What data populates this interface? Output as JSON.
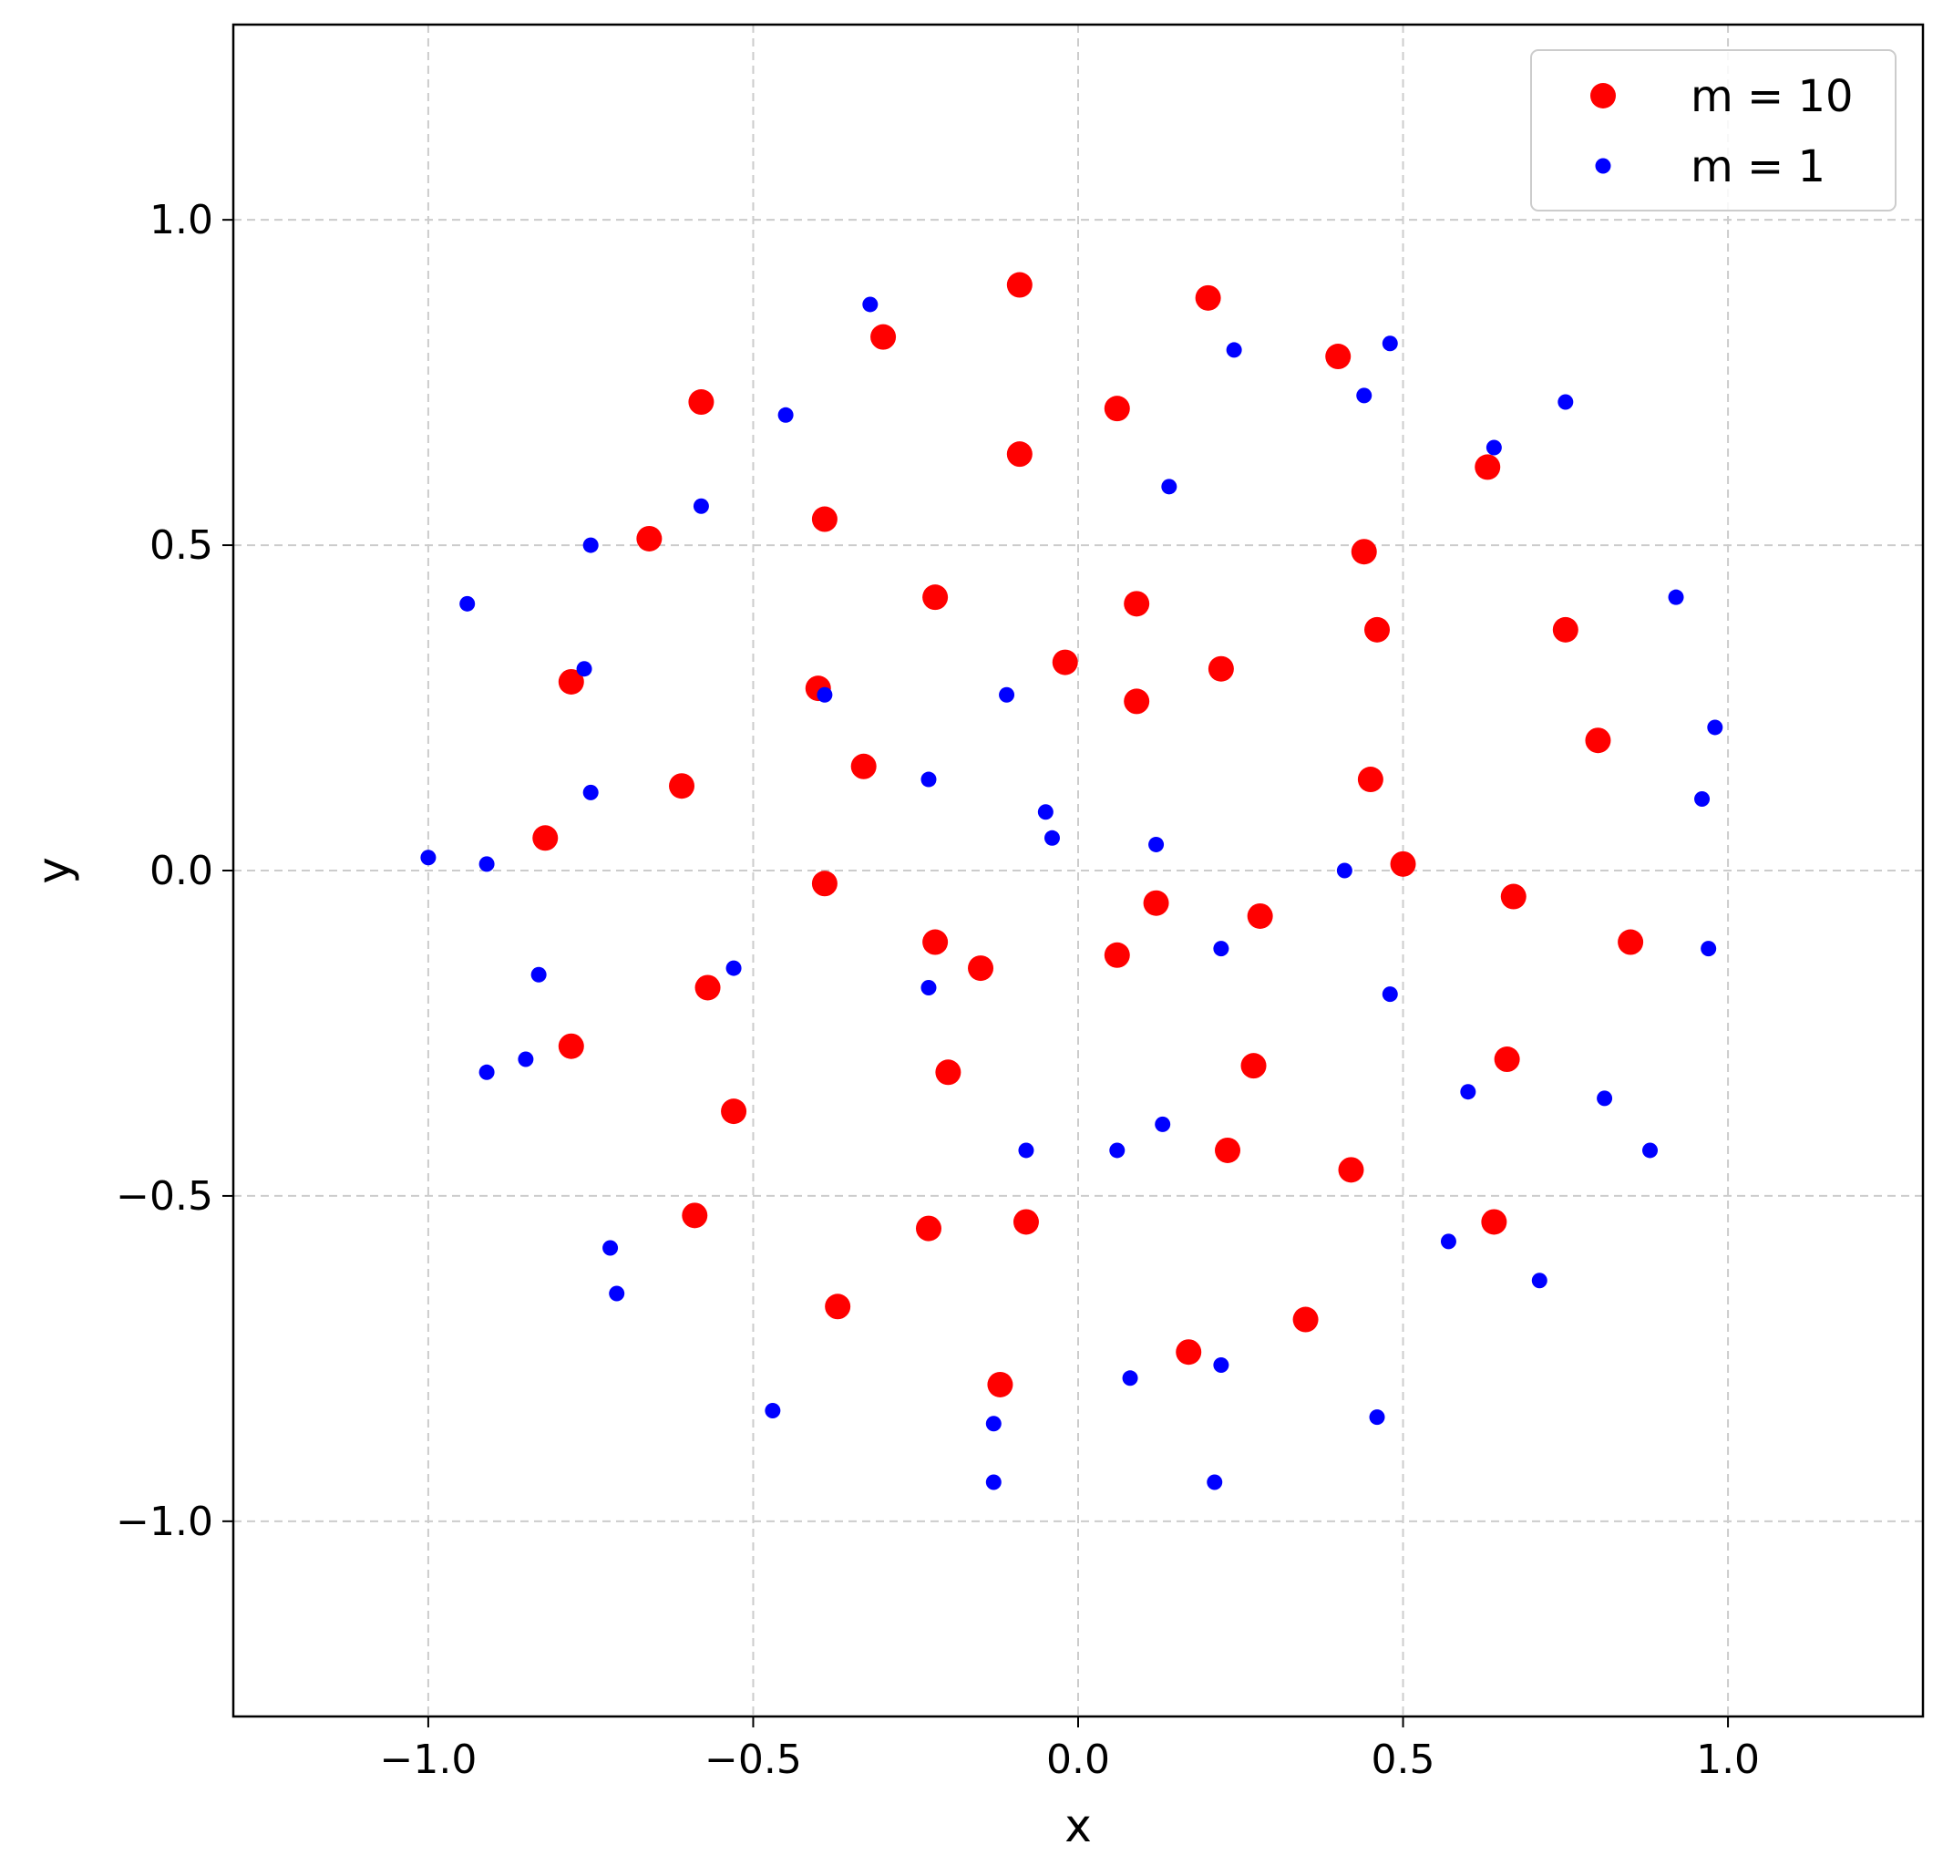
{
  "chart_data": {
    "type": "scatter",
    "xlabel": "x",
    "ylabel": "y",
    "xlim": [
      -1.3,
      1.3
    ],
    "ylim": [
      -1.3,
      1.3
    ],
    "grid": true,
    "legend_position": "top-right",
    "x_ticks": [
      {
        "value": -1.0,
        "label": "−1.0"
      },
      {
        "value": -0.5,
        "label": "−0.5"
      },
      {
        "value": 0.0,
        "label": "0.0"
      },
      {
        "value": 0.5,
        "label": "0.5"
      },
      {
        "value": 1.0,
        "label": "1.0"
      }
    ],
    "y_ticks": [
      {
        "value": 1.0,
        "label": "1.0"
      },
      {
        "value": 0.5,
        "label": "0.5"
      },
      {
        "value": 0.0,
        "label": "0.0"
      },
      {
        "value": -0.5,
        "label": "−0.5"
      },
      {
        "value": -1.0,
        "label": "−1.0"
      }
    ],
    "series": [
      {
        "name": "m = 10",
        "color": "#ff0000",
        "marker": "large-circle",
        "points": [
          [
            -0.09,
            0.9
          ],
          [
            0.2,
            0.88
          ],
          [
            -0.3,
            0.82
          ],
          [
            0.4,
            0.79
          ],
          [
            -0.58,
            0.72
          ],
          [
            0.06,
            0.71
          ],
          [
            -0.09,
            0.64
          ],
          [
            0.63,
            0.62
          ],
          [
            -0.39,
            0.54
          ],
          [
            -0.66,
            0.51
          ],
          [
            0.44,
            0.49
          ],
          [
            -0.22,
            0.42
          ],
          [
            0.09,
            0.41
          ],
          [
            0.46,
            0.37
          ],
          [
            0.75,
            0.37
          ],
          [
            -0.02,
            0.32
          ],
          [
            0.22,
            0.31
          ],
          [
            -0.78,
            0.29
          ],
          [
            -0.4,
            0.28
          ],
          [
            0.09,
            0.26
          ],
          [
            0.8,
            0.2
          ],
          [
            -0.33,
            0.16
          ],
          [
            0.45,
            0.14
          ],
          [
            -0.61,
            0.13
          ],
          [
            -0.82,
            0.05
          ],
          [
            0.5,
            0.01
          ],
          [
            -0.39,
            -0.02
          ],
          [
            0.12,
            -0.05
          ],
          [
            0.67,
            -0.04
          ],
          [
            0.28,
            -0.07
          ],
          [
            0.85,
            -0.11
          ],
          [
            -0.22,
            -0.11
          ],
          [
            0.06,
            -0.13
          ],
          [
            -0.15,
            -0.15
          ],
          [
            -0.57,
            -0.18
          ],
          [
            -0.78,
            -0.27
          ],
          [
            0.66,
            -0.29
          ],
          [
            0.27,
            -0.3
          ],
          [
            -0.2,
            -0.31
          ],
          [
            -0.53,
            -0.37
          ],
          [
            0.23,
            -0.43
          ],
          [
            0.42,
            -0.46
          ],
          [
            -0.59,
            -0.53
          ],
          [
            -0.08,
            -0.54
          ],
          [
            0.64,
            -0.54
          ],
          [
            -0.23,
            -0.55
          ],
          [
            -0.37,
            -0.67
          ],
          [
            0.35,
            -0.69
          ],
          [
            0.17,
            -0.74
          ],
          [
            -0.12,
            -0.79
          ]
        ]
      },
      {
        "name": "m = 1",
        "color": "#0000ff",
        "marker": "small-circle",
        "points": [
          [
            -0.32,
            0.87
          ],
          [
            0.48,
            0.81
          ],
          [
            0.24,
            0.8
          ],
          [
            0.44,
            0.73
          ],
          [
            0.75,
            0.72
          ],
          [
            -0.45,
            0.7
          ],
          [
            0.64,
            0.65
          ],
          [
            0.14,
            0.59
          ],
          [
            -0.58,
            0.56
          ],
          [
            -0.75,
            0.5
          ],
          [
            -0.94,
            0.41
          ],
          [
            0.92,
            0.42
          ],
          [
            -0.76,
            0.31
          ],
          [
            -0.39,
            0.27
          ],
          [
            -0.11,
            0.27
          ],
          [
            0.98,
            0.22
          ],
          [
            -0.23,
            0.14
          ],
          [
            -0.75,
            0.12
          ],
          [
            0.96,
            0.11
          ],
          [
            -0.05,
            0.09
          ],
          [
            -0.04,
            0.05
          ],
          [
            0.12,
            0.04
          ],
          [
            -1.0,
            0.02
          ],
          [
            -0.91,
            0.01
          ],
          [
            0.41,
            0.0
          ],
          [
            0.22,
            -0.12
          ],
          [
            0.97,
            -0.12
          ],
          [
            -0.83,
            -0.16
          ],
          [
            -0.53,
            -0.15
          ],
          [
            -0.23,
            -0.18
          ],
          [
            0.48,
            -0.19
          ],
          [
            -0.85,
            -0.29
          ],
          [
            -0.91,
            -0.31
          ],
          [
            0.6,
            -0.34
          ],
          [
            0.81,
            -0.35
          ],
          [
            0.13,
            -0.39
          ],
          [
            -0.08,
            -0.43
          ],
          [
            0.06,
            -0.43
          ],
          [
            0.88,
            -0.43
          ],
          [
            0.57,
            -0.57
          ],
          [
            -0.72,
            -0.58
          ],
          [
            -0.71,
            -0.65
          ],
          [
            0.71,
            -0.63
          ],
          [
            0.08,
            -0.78
          ],
          [
            0.22,
            -0.76
          ],
          [
            -0.47,
            -0.83
          ],
          [
            0.46,
            -0.84
          ],
          [
            -0.13,
            -0.85
          ],
          [
            -0.13,
            -0.94
          ],
          [
            0.21,
            -0.94
          ]
        ]
      }
    ]
  }
}
